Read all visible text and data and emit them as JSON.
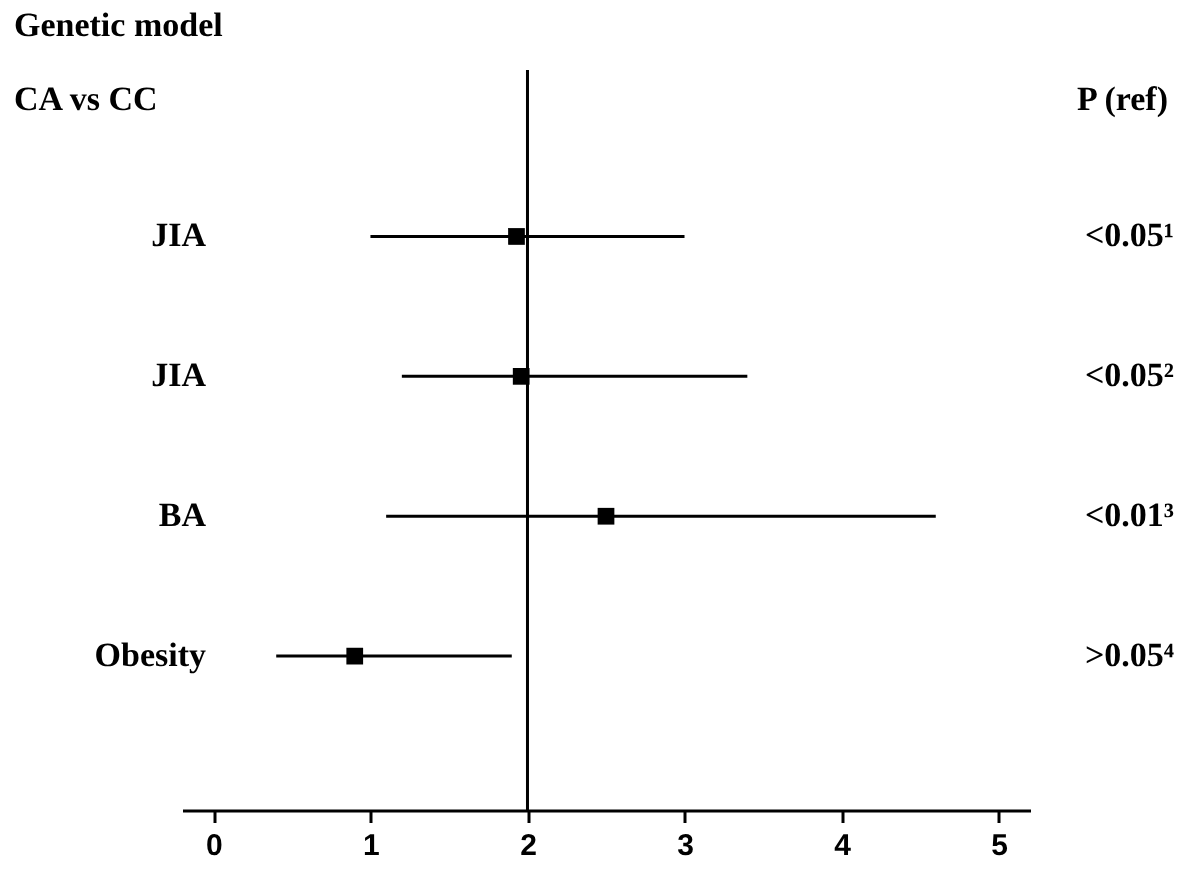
{
  "chart_data": {
    "type": "scatter",
    "title": "Genetic model",
    "subtitle": "CA vs CC",
    "categories": [
      "JIA",
      "JIA",
      "BA",
      "Obesity"
    ],
    "orientation": "horizontal",
    "values": [
      1.93,
      1.96,
      2.5,
      0.9
    ],
    "errors": [
      [
        1.0,
        3.0
      ],
      [
        1.2,
        3.4
      ],
      [
        1.1,
        4.6
      ],
      [
        0.4,
        1.9
      ]
    ],
    "color": "#000000",
    "marker": "square",
    "xlim": [
      -0.2,
      5.2
    ],
    "xticks": [
      0,
      1,
      2,
      3,
      4,
      5
    ],
    "ref_lines": [
      {
        "axis": "x",
        "value": 2,
        "color": "#000000"
      }
    ],
    "annotations": [
      "P (ref)",
      "<0.05¹",
      "<0.05²",
      "<0.01³",
      ">0.05⁴"
    ],
    "grid": false
  }
}
